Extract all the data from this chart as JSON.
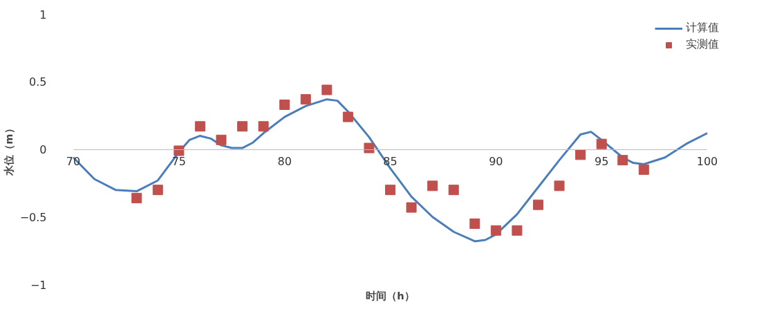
{
  "chart_data": {
    "type": "line",
    "xlabel": "时间（h）",
    "ylabel": "水位（m）",
    "xlim": [
      70,
      100
    ],
    "ylim": [
      -1,
      1
    ],
    "xticks": [
      70,
      75,
      80,
      85,
      90,
      95,
      100
    ],
    "yticks": [
      -1,
      -0.5,
      0,
      0.5,
      1
    ],
    "grid": false,
    "legend": "top right",
    "series": [
      {
        "name": "计算值",
        "type": "line",
        "color": "#4a7ebb",
        "marker": "none",
        "x": [
          70,
          71,
          72,
          73,
          74,
          75,
          75.5,
          76,
          76.5,
          77,
          77.5,
          78,
          78.5,
          79,
          80,
          81,
          82,
          82.5,
          83,
          84,
          85,
          86,
          87,
          88,
          89,
          89.5,
          90,
          91,
          92,
          93,
          94,
          94.5,
          95,
          96,
          96.5,
          97,
          98,
          99,
          100
        ],
        "values": [
          -0.06,
          -0.22,
          -0.3,
          -0.31,
          -0.23,
          -0.02,
          0.07,
          0.1,
          0.08,
          0.03,
          0.01,
          0.01,
          0.05,
          0.12,
          0.24,
          0.32,
          0.37,
          0.36,
          0.28,
          0.09,
          -0.14,
          -0.35,
          -0.5,
          -0.61,
          -0.68,
          -0.67,
          -0.63,
          -0.48,
          -0.28,
          -0.08,
          0.11,
          0.13,
          0.07,
          -0.06,
          -0.1,
          -0.11,
          -0.06,
          0.04,
          0.12
        ]
      },
      {
        "name": "实测值",
        "type": "scatter",
        "color": "#c0504d",
        "marker": "square",
        "x": [
          73,
          74,
          75,
          76,
          77,
          78,
          79,
          80,
          81,
          82,
          83,
          84,
          85,
          86,
          87,
          88,
          89,
          90,
          91,
          92,
          93,
          94,
          95,
          96,
          97
        ],
        "values": [
          -0.36,
          -0.3,
          -0.01,
          0.17,
          0.07,
          0.17,
          0.17,
          0.33,
          0.37,
          0.44,
          0.24,
          0.01,
          -0.3,
          -0.43,
          -0.27,
          -0.3,
          -0.55,
          -0.6,
          -0.6,
          -0.41,
          -0.27,
          -0.04,
          0.04,
          -0.08,
          -0.15
        ]
      }
    ]
  }
}
